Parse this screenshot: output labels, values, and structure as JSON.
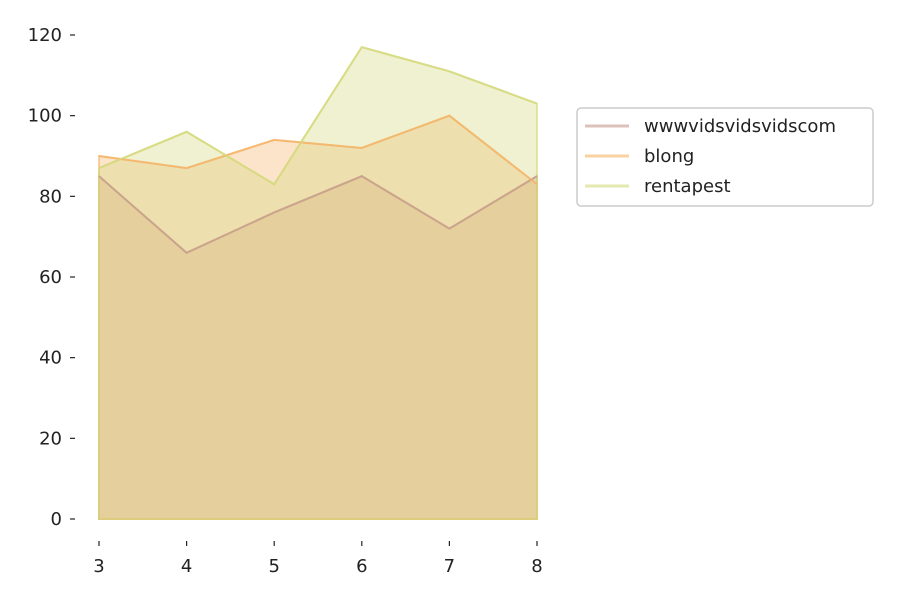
{
  "chart_data": {
    "type": "area",
    "x": [
      3,
      4,
      5,
      6,
      7,
      8
    ],
    "xticks": [
      "3",
      "4",
      "5",
      "6",
      "7",
      "8"
    ],
    "yticks": [
      "0",
      "20",
      "40",
      "60",
      "80",
      "100",
      "120"
    ],
    "xlim": [
      3,
      8
    ],
    "ylim": [
      0,
      120
    ],
    "grid": false,
    "legend_position": "right",
    "series": [
      {
        "name": "wwwvidsvidsvidscom",
        "color": "#c49a8c",
        "values": [
          85,
          66,
          76,
          85,
          72,
          85
        ]
      },
      {
        "name": "blong",
        "color": "#f5b266",
        "values": [
          90,
          87,
          94,
          92,
          100,
          83
        ]
      },
      {
        "name": "rentapest",
        "color": "#d4d87a",
        "values": [
          87,
          96,
          83,
          117,
          111,
          103
        ]
      }
    ]
  }
}
